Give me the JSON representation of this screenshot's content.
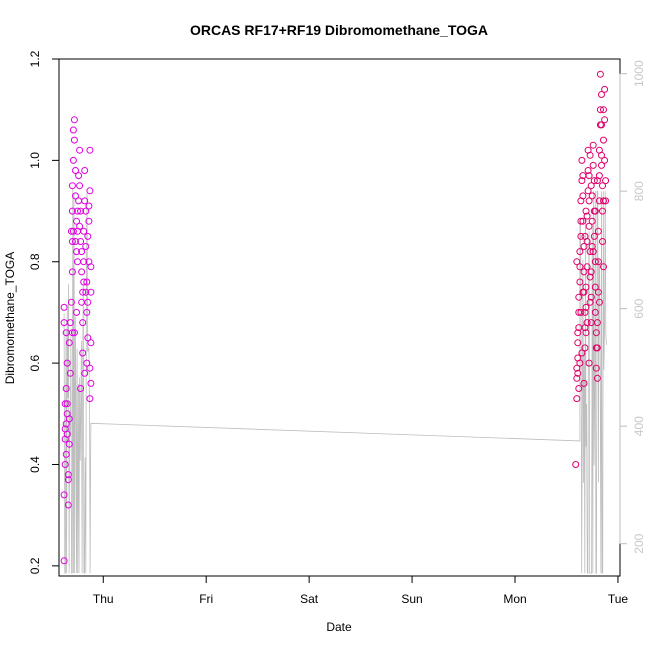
{
  "chart_data": {
    "type": "scatter",
    "title": "ORCAS RF17+RF19 Dibromomethane_TOGA",
    "xlabel": "Date",
    "ylabel": "Dibromomethane_TOGA",
    "x_ticks": [
      "Thu",
      "Fri",
      "Sat",
      "Sun",
      "Mon",
      "Tue"
    ],
    "xlim_days": [
      -0.43,
      5.02
    ],
    "ylim": [
      0.18,
      1.2
    ],
    "y_ticks": [
      0.2,
      0.4,
      0.6,
      0.8,
      1.0,
      1.2
    ],
    "y2_ticks": [
      200,
      400,
      600,
      800,
      1000
    ],
    "y2lim": [
      1025,
      145
    ],
    "grid": false,
    "colors": {
      "points_day1": "#e000e0",
      "points_day2": "#e0006a",
      "secondary_line": "#bdbdbd"
    },
    "series": [
      {
        "values": [
          [
            -0.38,
            0.21
          ],
          [
            -0.38,
            0.34
          ],
          [
            -0.37,
            0.4
          ],
          [
            -0.37,
            0.45
          ],
          [
            -0.36,
            0.48
          ],
          [
            -0.36,
            0.42
          ],
          [
            -0.37,
            0.52
          ],
          [
            -0.36,
            0.55
          ],
          [
            -0.35,
            0.5
          ],
          [
            -0.35,
            0.46
          ],
          [
            -0.34,
            0.37
          ],
          [
            -0.34,
            0.32
          ],
          [
            -0.35,
            0.6
          ],
          [
            -0.36,
            0.66
          ],
          [
            -0.38,
            0.71
          ],
          [
            -0.38,
            0.68
          ],
          [
            -0.37,
            0.47
          ],
          [
            -0.33,
            0.44
          ],
          [
            -0.32,
            0.58
          ],
          [
            -0.33,
            0.64
          ],
          [
            -0.32,
            0.68
          ],
          [
            -0.31,
            0.72
          ],
          [
            -0.3,
            0.78
          ],
          [
            -0.3,
            0.84
          ],
          [
            -0.31,
            0.86
          ],
          [
            -0.3,
            0.9
          ],
          [
            -0.3,
            0.95
          ],
          [
            -0.29,
            1.0
          ],
          [
            -0.29,
            1.06
          ],
          [
            -0.28,
            1.08
          ],
          [
            -0.28,
            1.04
          ],
          [
            -0.27,
            0.98
          ],
          [
            -0.27,
            0.93
          ],
          [
            -0.26,
            0.88
          ],
          [
            -0.26,
            0.82
          ],
          [
            -0.25,
            0.8
          ],
          [
            -0.25,
            0.86
          ],
          [
            -0.24,
            0.92
          ],
          [
            -0.24,
            0.97
          ],
          [
            -0.23,
            1.02
          ],
          [
            -0.23,
            0.95
          ],
          [
            -0.22,
            0.9
          ],
          [
            -0.22,
            0.84
          ],
          [
            -0.21,
            0.78
          ],
          [
            -0.21,
            0.72
          ],
          [
            -0.2,
            0.68
          ],
          [
            -0.2,
            0.74
          ],
          [
            -0.19,
            0.8
          ],
          [
            -0.19,
            0.86
          ],
          [
            -0.18,
            0.92
          ],
          [
            -0.18,
            0.98
          ],
          [
            -0.17,
            0.9
          ],
          [
            -0.17,
            0.83
          ],
          [
            -0.16,
            0.76
          ],
          [
            -0.16,
            0.7
          ],
          [
            -0.15,
            0.65
          ],
          [
            -0.15,
            0.72
          ],
          [
            -0.14,
            0.8
          ],
          [
            -0.14,
            0.88
          ],
          [
            -0.13,
            1.02
          ],
          [
            -0.13,
            0.94
          ],
          [
            -0.12,
            0.79
          ],
          [
            -0.12,
            0.74
          ],
          [
            -0.12,
            0.64
          ],
          [
            -0.13,
            0.59
          ],
          [
            -0.12,
            0.56
          ],
          [
            -0.13,
            0.53
          ],
          [
            -0.22,
            0.55
          ],
          [
            -0.2,
            0.62
          ],
          [
            -0.18,
            0.58
          ],
          [
            -0.16,
            0.6
          ],
          [
            -0.26,
            0.7
          ],
          [
            -0.28,
            0.66
          ],
          [
            -0.29,
            0.86
          ],
          [
            -0.27,
            0.84
          ],
          [
            -0.25,
            0.9
          ],
          [
            -0.23,
            0.87
          ],
          [
            -0.21,
            0.82
          ],
          [
            -0.19,
            0.76
          ],
          [
            -0.17,
            0.74
          ],
          [
            -0.15,
            0.85
          ],
          [
            -0.14,
            0.91
          ],
          [
            -0.3,
            0.66
          ],
          [
            -0.33,
            0.49
          ],
          [
            -0.35,
            0.52
          ],
          [
            -0.34,
            0.38
          ]
        ]
      },
      {
        "values": [
          [
            4.59,
            0.4
          ],
          [
            4.6,
            0.53
          ],
          [
            4.6,
            0.57
          ],
          [
            4.6,
            0.59
          ],
          [
            4.61,
            0.58
          ],
          [
            4.61,
            0.61
          ],
          [
            4.61,
            0.64
          ],
          [
            4.62,
            0.67
          ],
          [
            4.62,
            0.7
          ],
          [
            4.62,
            0.73
          ],
          [
            4.63,
            0.76
          ],
          [
            4.63,
            0.79
          ],
          [
            4.63,
            0.82
          ],
          [
            4.64,
            0.85
          ],
          [
            4.64,
            0.88
          ],
          [
            4.64,
            0.92
          ],
          [
            4.65,
            0.96
          ],
          [
            4.65,
            1.0
          ],
          [
            4.66,
            0.97
          ],
          [
            4.66,
            0.93
          ],
          [
            4.66,
            0.88
          ],
          [
            4.67,
            0.83
          ],
          [
            4.67,
            0.78
          ],
          [
            4.67,
            0.74
          ],
          [
            4.68,
            0.7
          ],
          [
            4.68,
            0.67
          ],
          [
            4.68,
            0.63
          ],
          [
            4.69,
            0.66
          ],
          [
            4.69,
            0.71
          ],
          [
            4.69,
            0.75
          ],
          [
            4.7,
            0.79
          ],
          [
            4.7,
            0.84
          ],
          [
            4.7,
            0.89
          ],
          [
            4.71,
            0.94
          ],
          [
            4.71,
            0.98
          ],
          [
            4.71,
            1.02
          ],
          [
            4.72,
            0.97
          ],
          [
            4.72,
            0.92
          ],
          [
            4.72,
            0.87
          ],
          [
            4.73,
            0.82
          ],
          [
            4.73,
            0.77
          ],
          [
            4.73,
            0.72
          ],
          [
            4.74,
            0.68
          ],
          [
            4.74,
            0.73
          ],
          [
            4.74,
            0.78
          ],
          [
            4.75,
            0.83
          ],
          [
            4.75,
            0.88
          ],
          [
            4.75,
            0.93
          ],
          [
            4.76,
            0.99
          ],
          [
            4.76,
            1.03
          ],
          [
            4.77,
            0.96
          ],
          [
            4.77,
            0.9
          ],
          [
            4.77,
            0.85
          ],
          [
            4.78,
            0.8
          ],
          [
            4.78,
            0.75
          ],
          [
            4.78,
            0.7
          ],
          [
            4.79,
            0.66
          ],
          [
            4.79,
            0.63
          ],
          [
            4.79,
            0.59
          ],
          [
            4.8,
            0.57
          ],
          [
            4.8,
            0.63
          ],
          [
            4.8,
            0.68
          ],
          [
            4.81,
            0.74
          ],
          [
            4.81,
            0.8
          ],
          [
            4.81,
            0.86
          ],
          [
            4.82,
            0.92
          ],
          [
            4.82,
            0.97
          ],
          [
            4.82,
            1.02
          ],
          [
            4.83,
            1.07
          ],
          [
            4.83,
            1.1
          ],
          [
            4.83,
            1.17
          ],
          [
            4.84,
            1.13
          ],
          [
            4.84,
            1.07
          ],
          [
            4.84,
            1.01
          ],
          [
            4.85,
            0.95
          ],
          [
            4.85,
            0.9
          ],
          [
            4.85,
            0.84
          ],
          [
            4.86,
            0.79
          ],
          [
            4.86,
            1.04
          ],
          [
            4.86,
            1.1
          ],
          [
            4.87,
            1.14
          ],
          [
            4.87,
            1.08
          ],
          [
            4.87,
            1.0
          ],
          [
            4.88,
            0.96
          ],
          [
            4.88,
            0.92
          ],
          [
            4.6,
            0.8
          ],
          [
            4.61,
            0.66
          ],
          [
            4.63,
            0.6
          ],
          [
            4.65,
            0.62
          ],
          [
            4.67,
            0.56
          ],
          [
            4.62,
            0.55
          ],
          [
            4.64,
            0.7
          ],
          [
            4.66,
            0.74
          ],
          [
            4.68,
            0.85
          ],
          [
            4.7,
            0.68
          ],
          [
            4.72,
            0.6
          ],
          [
            4.74,
            0.95
          ],
          [
            4.76,
            0.82
          ],
          [
            4.78,
            0.9
          ],
          [
            4.8,
            0.96
          ],
          [
            4.82,
            0.72
          ],
          [
            4.84,
            0.99
          ],
          [
            4.86,
            0.92
          ],
          [
            4.69,
            0.9
          ],
          [
            4.73,
            1.01
          ]
        ]
      }
    ]
  }
}
